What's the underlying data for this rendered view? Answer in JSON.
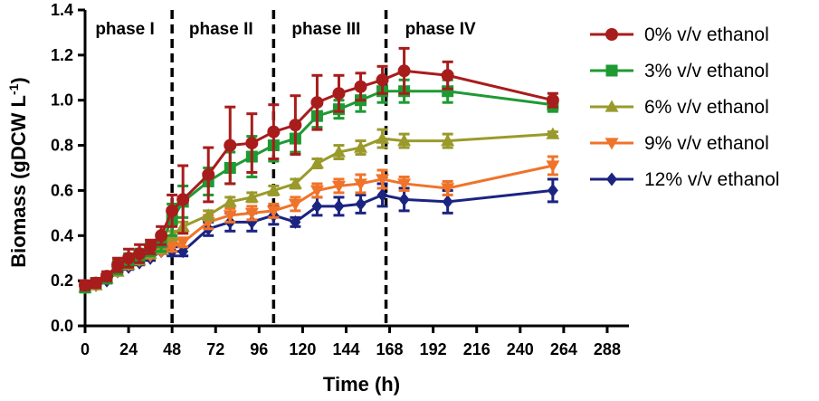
{
  "chart_data": {
    "type": "line",
    "title": "",
    "xlabel": "Time (h)",
    "ylabel_main": "Biomass (gDCW L",
    "ylabel_sup": "-1",
    "ylabel_tail": ")",
    "xlim": [
      0,
      300
    ],
    "ylim": [
      0,
      1.4
    ],
    "xticks": [
      0,
      24,
      48,
      72,
      96,
      120,
      144,
      168,
      192,
      216,
      240,
      264,
      288
    ],
    "yticks": [
      0.0,
      0.2,
      0.4,
      0.6,
      0.8,
      1.0,
      1.2,
      1.4
    ],
    "ytick_labels": [
      "0.0",
      "0.2",
      "0.4",
      "0.6",
      "0.8",
      "1.0",
      "1.2",
      "1.4"
    ],
    "legend_position": "right",
    "phase_dividers": [
      48,
      104,
      166
    ],
    "phases": [
      {
        "label": "phase I",
        "x_mid": 22
      },
      {
        "label": "phase II",
        "x_mid": 75
      },
      {
        "label": "phase III",
        "x_mid": 133
      },
      {
        "label": "phase IV",
        "x_mid": 196
      }
    ],
    "series": [
      {
        "name": "0% v/v ethanol",
        "color": "#A81C1C",
        "marker": "circle",
        "x": [
          0,
          6,
          12,
          18,
          24,
          30,
          36,
          42,
          48,
          54,
          68,
          80,
          92,
          104,
          116,
          128,
          140,
          152,
          164,
          176,
          200,
          258
        ],
        "y": [
          0.18,
          0.19,
          0.22,
          0.27,
          0.3,
          0.32,
          0.35,
          0.4,
          0.51,
          0.56,
          0.67,
          0.8,
          0.81,
          0.86,
          0.89,
          0.99,
          1.03,
          1.06,
          1.09,
          1.13,
          1.11,
          1.0
        ],
        "err": [
          0.02,
          0.02,
          0.02,
          0.03,
          0.04,
          0.04,
          0.03,
          0.04,
          0.07,
          0.15,
          0.12,
          0.17,
          0.13,
          0.12,
          0.13,
          0.12,
          0.08,
          0.06,
          0.06,
          0.1,
          0.06,
          0.03
        ]
      },
      {
        "name": "3% v/v ethanol",
        "color": "#1E9A32",
        "marker": "square",
        "x": [
          0,
          6,
          12,
          18,
          24,
          30,
          36,
          42,
          48,
          54,
          68,
          80,
          92,
          104,
          116,
          128,
          140,
          152,
          164,
          176,
          200,
          258
        ],
        "y": [
          0.17,
          0.19,
          0.21,
          0.26,
          0.29,
          0.31,
          0.34,
          0.37,
          0.47,
          0.55,
          0.64,
          0.7,
          0.75,
          0.8,
          0.83,
          0.93,
          0.96,
          1.0,
          1.04,
          1.04,
          1.04,
          0.98
        ],
        "err": [
          0.02,
          0.02,
          0.02,
          0.03,
          0.03,
          0.03,
          0.03,
          0.04,
          0.07,
          0.07,
          0.06,
          0.07,
          0.09,
          0.07,
          0.06,
          0.05,
          0.04,
          0.05,
          0.05,
          0.05,
          0.05,
          0.03
        ]
      },
      {
        "name": "6% v/v ethanol",
        "color": "#9A9A2C",
        "marker": "triangle-up",
        "x": [
          0,
          6,
          12,
          18,
          24,
          30,
          36,
          42,
          48,
          54,
          68,
          80,
          92,
          104,
          116,
          128,
          140,
          152,
          164,
          176,
          200,
          258
        ],
        "y": [
          0.17,
          0.18,
          0.21,
          0.24,
          0.27,
          0.29,
          0.32,
          0.34,
          0.4,
          0.44,
          0.49,
          0.55,
          0.57,
          0.6,
          0.63,
          0.72,
          0.77,
          0.79,
          0.83,
          0.82,
          0.82,
          0.85
        ],
        "err": [
          0.01,
          0.01,
          0.01,
          0.01,
          0.01,
          0.01,
          0.01,
          0.01,
          0.02,
          0.02,
          0.02,
          0.02,
          0.02,
          0.02,
          0.02,
          0.02,
          0.03,
          0.03,
          0.04,
          0.03,
          0.03,
          0.01
        ]
      },
      {
        "name": "9% v/v ethanol",
        "color": "#F0732A",
        "marker": "triangle-down",
        "x": [
          0,
          6,
          12,
          18,
          24,
          30,
          36,
          42,
          48,
          54,
          68,
          80,
          92,
          104,
          116,
          128,
          140,
          152,
          164,
          176,
          200,
          258
        ],
        "y": [
          0.17,
          0.18,
          0.21,
          0.24,
          0.27,
          0.29,
          0.31,
          0.33,
          0.35,
          0.37,
          0.46,
          0.49,
          0.5,
          0.51,
          0.54,
          0.6,
          0.62,
          0.63,
          0.65,
          0.63,
          0.61,
          0.71
        ],
        "err": [
          0.01,
          0.01,
          0.01,
          0.01,
          0.01,
          0.01,
          0.01,
          0.01,
          0.02,
          0.02,
          0.03,
          0.03,
          0.03,
          0.03,
          0.03,
          0.03,
          0.03,
          0.04,
          0.04,
          0.03,
          0.03,
          0.04
        ]
      },
      {
        "name": "12% v/v ethanol",
        "color": "#1B2480",
        "marker": "diamond",
        "x": [
          0,
          6,
          12,
          18,
          24,
          30,
          36,
          42,
          48,
          54,
          68,
          80,
          92,
          104,
          116,
          128,
          140,
          152,
          164,
          176,
          200,
          258
        ],
        "y": [
          0.17,
          0.18,
          0.2,
          0.24,
          0.26,
          0.28,
          0.3,
          0.33,
          0.33,
          0.33,
          0.43,
          0.46,
          0.46,
          0.49,
          0.46,
          0.53,
          0.53,
          0.54,
          0.58,
          0.56,
          0.55,
          0.6
        ],
        "err": [
          0.01,
          0.01,
          0.01,
          0.01,
          0.01,
          0.01,
          0.01,
          0.01,
          0.02,
          0.02,
          0.03,
          0.04,
          0.04,
          0.04,
          0.02,
          0.04,
          0.04,
          0.04,
          0.05,
          0.05,
          0.05,
          0.05
        ]
      }
    ]
  }
}
